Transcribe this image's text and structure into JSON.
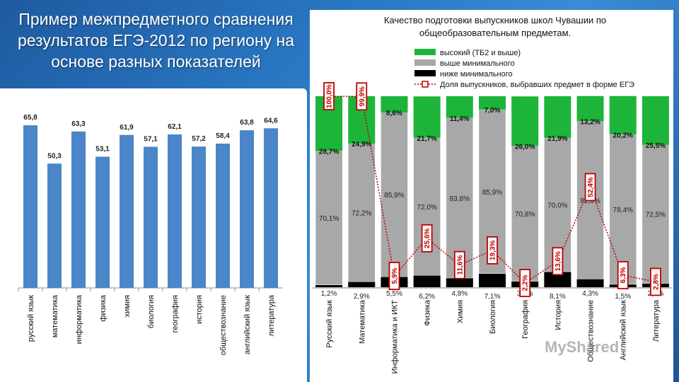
{
  "slide": {
    "title": "Пример межпредметного сравнения результатов ЕГЭ-2012 по региону на основе разных показателей",
    "watermark": "MyShared"
  },
  "chart_data": [
    {
      "type": "bar",
      "categories": [
        "русский язык",
        "математика",
        "информатика",
        "физика",
        "химия",
        "биология",
        "география",
        "история",
        "обществознание",
        "английский язык",
        "литература"
      ],
      "values": [
        65.8,
        50.3,
        63.3,
        53.1,
        61.9,
        57.1,
        62.1,
        57.2,
        58.4,
        63.8,
        64.6
      ],
      "value_labels": [
        "65,8",
        "50,3",
        "63,3",
        "53,1",
        "61,9",
        "57,1",
        "62,1",
        "57,2",
        "58,4",
        "63,8",
        "64,6"
      ],
      "ylim": [
        0,
        75
      ],
      "colors": {
        "bar": "#4a86c8"
      }
    },
    {
      "type": "bar",
      "stacked": true,
      "title": "Качество подготовки выпускников школ Чувашии по общеобразовательным предметам.",
      "categories": [
        "Русский язык",
        "Математика",
        "Информатика и ИКТ",
        "Физика",
        "Химия",
        "Биология",
        "География",
        "История",
        "Обществознание",
        "Английский язык",
        "Литература"
      ],
      "series": [
        {
          "name": "высокий (ТБ2 и выше)",
          "color": "#1db43a",
          "values": [
            28.7,
            24.9,
            8.6,
            21.7,
            11.4,
            7.0,
            26.0,
            21.9,
            13.2,
            20.2,
            25.5
          ],
          "labels": [
            "28,7%",
            "24,9%",
            "8,6%",
            "21,7%",
            "11,4%",
            "7,0%",
            "26,0%",
            "21,9%",
            "13,2%",
            "20,2%",
            "25,5%"
          ]
        },
        {
          "name": "выше минимального",
          "color": "#a8a8a8",
          "values": [
            70.1,
            72.2,
            85.9,
            72.0,
            83.8,
            85.9,
            70.8,
            70.0,
            82.6,
            78.4,
            72.5
          ],
          "labels": [
            "70,1%",
            "72,2%",
            "85,9%",
            "72,0%",
            "83,8%",
            "85,9%",
            "70,8%",
            "70,0%",
            "82,6%",
            "78,4%",
            "72,5%"
          ]
        },
        {
          "name": "ниже минимального",
          "color": "#000000",
          "values": [
            1.2,
            2.9,
            5.5,
            6.2,
            4.8,
            7.1,
            3.1,
            8.1,
            4.3,
            1.5,
            2.0
          ],
          "labels": [
            "1,2%",
            "2,9%",
            "5,5%",
            "6,2%",
            "4,8%",
            "7,1%",
            "3,1%",
            "8,1%",
            "4,3%",
            "1,5%",
            "2,0%"
          ]
        },
        {
          "name": "Доля выпускников, выбравших предмет в форме ЕГЭ",
          "color": "#c00000",
          "type": "line",
          "values": [
            100.0,
            99.9,
            5.9,
            25.6,
            11.6,
            19.3,
            2.2,
            13.6,
            52.4,
            6.3,
            2.8
          ],
          "labels": [
            "100,0%",
            "99,9%",
            "5,9%",
            "25,6%",
            "11,6%",
            "19,3%",
            "2,2%",
            "13,6%",
            "52,4%",
            "6,3%",
            "2,8%"
          ]
        }
      ],
      "ylim": [
        0,
        100
      ],
      "legend": "top"
    }
  ]
}
